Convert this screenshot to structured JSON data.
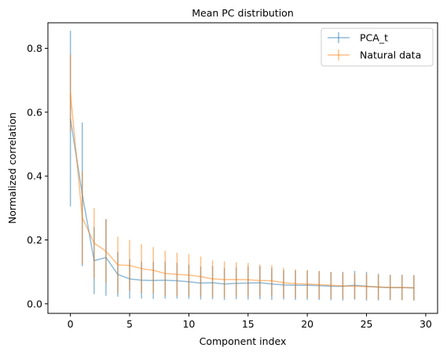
{
  "chart_data": {
    "type": "line",
    "title": "Mean PC distribution",
    "xlabel": "Component index",
    "ylabel": "Normalized correlation",
    "xlim": [
      -1.9,
      31.0
    ],
    "ylim": [
      -0.03,
      0.88
    ],
    "xticks": [
      0,
      5,
      10,
      15,
      20,
      25,
      30
    ],
    "yticks": [
      0.0,
      0.2,
      0.4,
      0.6,
      0.8
    ],
    "grid": false,
    "legend_position": "top-right",
    "x": [
      0,
      1,
      2,
      3,
      4,
      5,
      6,
      7,
      8,
      9,
      10,
      11,
      12,
      13,
      14,
      15,
      16,
      17,
      18,
      19,
      20,
      21,
      22,
      23,
      24,
      25,
      26,
      27,
      28,
      29
    ],
    "series": [
      {
        "name": "PCA_t",
        "color": "#1f77b4",
        "values": [
          0.58,
          0.343,
          0.135,
          0.145,
          0.092,
          0.078,
          0.074,
          0.073,
          0.074,
          0.072,
          0.069,
          0.065,
          0.066,
          0.062,
          0.064,
          0.065,
          0.066,
          0.062,
          0.059,
          0.058,
          0.058,
          0.057,
          0.055,
          0.055,
          0.058,
          0.055,
          0.052,
          0.051,
          0.051,
          0.05
        ],
        "errors": [
          0.275,
          0.225,
          0.105,
          0.12,
          0.07,
          0.062,
          0.058,
          0.058,
          0.058,
          0.056,
          0.054,
          0.052,
          0.052,
          0.05,
          0.05,
          0.052,
          0.052,
          0.05,
          0.046,
          0.046,
          0.046,
          0.045,
          0.044,
          0.045,
          0.045,
          0.045,
          0.042,
          0.04,
          0.04,
          0.04
        ]
      },
      {
        "name": "Natural data",
        "color": "#ff7f0e",
        "values": [
          0.66,
          0.27,
          0.19,
          0.165,
          0.122,
          0.12,
          0.11,
          0.105,
          0.095,
          0.092,
          0.09,
          0.085,
          0.078,
          0.076,
          0.076,
          0.075,
          0.073,
          0.072,
          0.066,
          0.063,
          0.062,
          0.06,
          0.058,
          0.056,
          0.055,
          0.054,
          0.053,
          0.051,
          0.051,
          0.05
        ],
        "errors": [
          0.12,
          0.145,
          0.11,
          0.1,
          0.088,
          0.08,
          0.077,
          0.073,
          0.071,
          0.068,
          0.066,
          0.063,
          0.058,
          0.057,
          0.054,
          0.053,
          0.05,
          0.049,
          0.047,
          0.045,
          0.044,
          0.043,
          0.042,
          0.041,
          0.04,
          0.04,
          0.039,
          0.039,
          0.039,
          0.039
        ]
      }
    ]
  }
}
